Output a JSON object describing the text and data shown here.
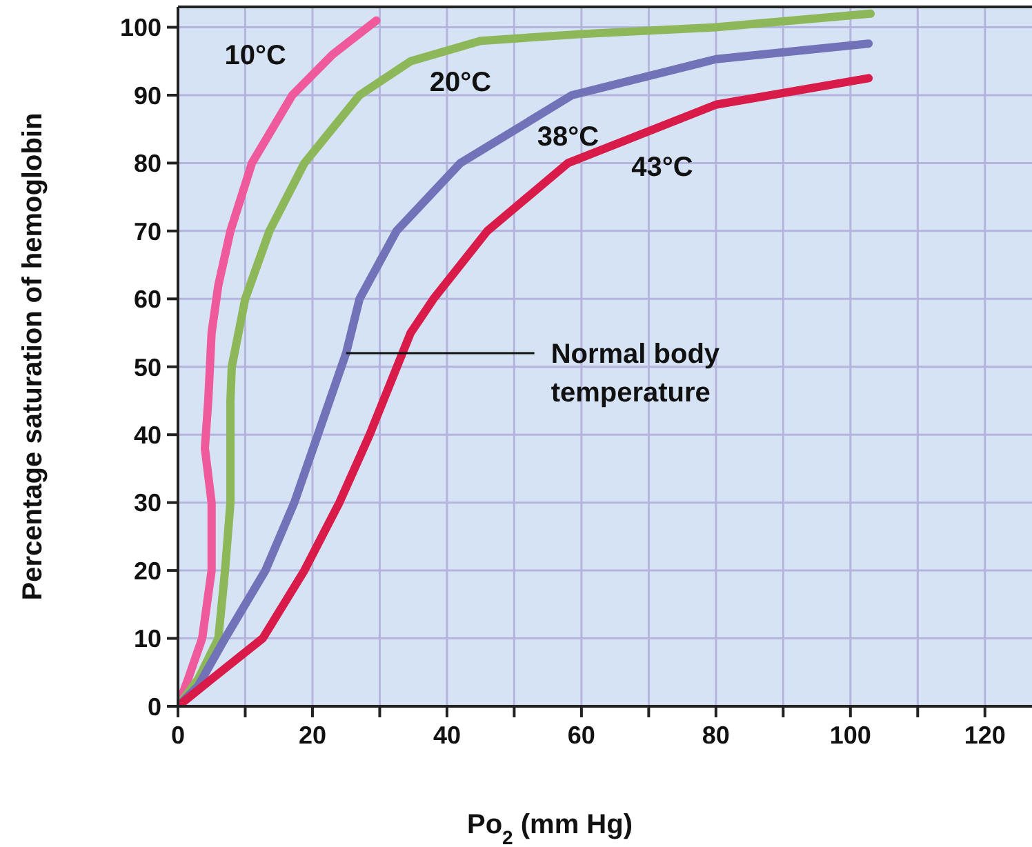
{
  "chart_data": {
    "type": "line",
    "xlabel": "Po$_{2}$ (mm Hg)",
    "ylabel": "Percentage saturation of hemoglobin",
    "xlim": [
      0,
      127
    ],
    "ylim": [
      0,
      103
    ],
    "xticks": [
      0,
      {
        "value": 10,
        "label": null
      },
      20,
      {
        "value": 30,
        "label": null
      },
      40,
      {
        "value": 50,
        "label": null
      },
      60,
      {
        "value": 70,
        "label": null
      },
      80,
      {
        "value": 90,
        "label": null
      },
      100,
      {
        "value": 110,
        "label": null
      },
      120
    ],
    "yticks": [
      0,
      10,
      20,
      30,
      40,
      50,
      60,
      70,
      80,
      90,
      100
    ],
    "grid": true,
    "legend": false,
    "marker": "none",
    "line_style": "solid",
    "series": [
      {
        "name": "10°C",
        "color": "#ee5a9b",
        "x": [
          0,
          1.5,
          3.6,
          5,
          5,
          4,
          4.5,
          5,
          6,
          7.8,
          11,
          17,
          23,
          29.5
        ],
        "values": [
          0,
          4,
          10,
          20,
          30,
          38,
          45,
          55,
          62,
          70,
          80,
          90,
          96,
          101
        ]
      },
      {
        "name": "20°C",
        "color": "#8db85a",
        "x": [
          0,
          3,
          6,
          7,
          7.8,
          7.8,
          8,
          10,
          13.6,
          18.8,
          27,
          34.6,
          45,
          60,
          80,
          103
        ],
        "values": [
          0,
          4,
          10,
          20,
          30,
          45,
          50,
          60,
          70,
          80,
          90,
          95,
          98,
          99,
          100,
          102
        ]
      },
      {
        "name": "38°C",
        "color": "#7272b8",
        "x": [
          0,
          3,
          7,
          13,
          17.3,
          20.8,
          25,
          27,
          32.5,
          42,
          58.6,
          80,
          102.7
        ],
        "values": [
          0,
          3,
          10,
          20,
          30,
          40,
          52,
          60,
          70,
          80,
          90,
          95.3,
          97.6
        ]
      },
      {
        "name": "43°C",
        "color": "#d81b48",
        "x": [
          0,
          5,
          12.6,
          18.8,
          24,
          28.5,
          34.6,
          38,
          46,
          58,
          80,
          102.7
        ],
        "values": [
          0,
          4,
          10,
          20,
          30,
          40,
          55,
          60,
          70,
          80,
          88.6,
          92.5
        ]
      }
    ],
    "annotations": [
      {
        "text": "Normal body temperature",
        "x": 25,
        "y": 52
      }
    ]
  }
}
